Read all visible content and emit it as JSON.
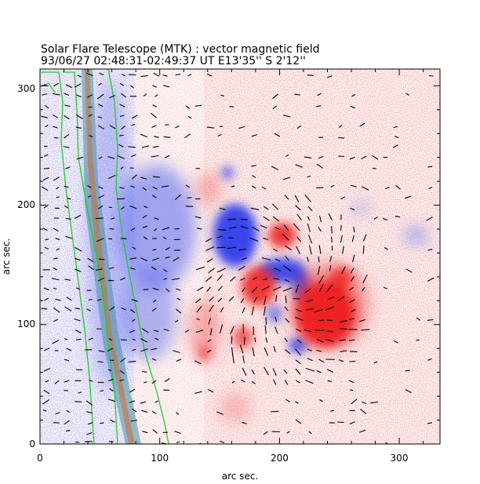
{
  "figure": {
    "title": "Solar Flare Telescope (MTK) : vector magnetic field",
    "subtitle": "93/06/27   02:48:31-02:49:37 UT     E13'35''   S 2'12''",
    "xlabel": "arc sec.",
    "ylabel": "arc sec.",
    "xticks": [
      "0",
      "100",
      "200",
      "300"
    ],
    "yticks": [
      "0",
      "100",
      "200",
      "300"
    ],
    "xrange": [
      0,
      334
    ],
    "yrange": [
      0,
      314
    ]
  },
  "colors": {
    "positive": "#ee3030",
    "negative": "#3040ee",
    "contour": "#22cc22",
    "vector": "#000000",
    "band": "#cc6644"
  }
}
